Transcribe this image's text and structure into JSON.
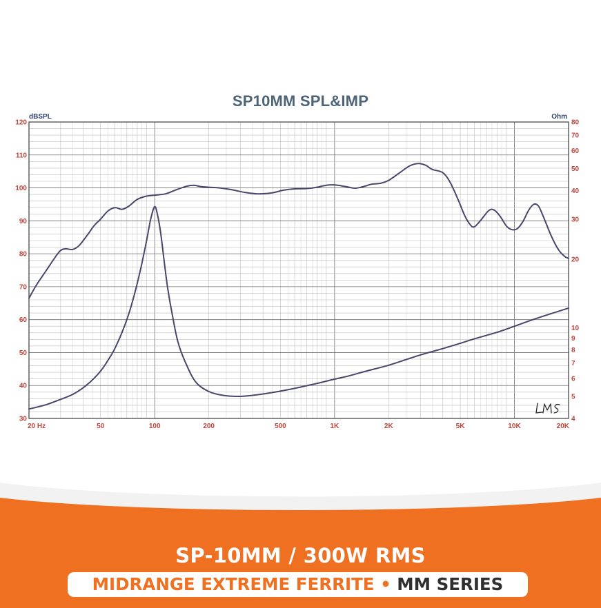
{
  "chart_data": {
    "type": "line",
    "title": "SP10MM SPL&IMP",
    "left_axis_unit": "dBSPL",
    "right_axis_unit": "Ohm",
    "x_scale": "log",
    "xlim": [
      20,
      20000
    ],
    "ylim_left": [
      30,
      120
    ],
    "ylim_right": [
      4,
      80
    ],
    "right_scale": "log",
    "grid": true,
    "x_ticks": [
      {
        "value": 20,
        "label": "20  Hz"
      },
      {
        "value": 50,
        "label": "50"
      },
      {
        "value": 100,
        "label": "100"
      },
      {
        "value": 200,
        "label": "200"
      },
      {
        "value": 500,
        "label": "500"
      },
      {
        "value": 1000,
        "label": "1K"
      },
      {
        "value": 2000,
        "label": "2K"
      },
      {
        "value": 5000,
        "label": "5K"
      },
      {
        "value": 10000,
        "label": "10K"
      },
      {
        "value": 20000,
        "label": "20K"
      }
    ],
    "left_ticks": [
      30,
      40,
      50,
      60,
      70,
      80,
      90,
      100,
      110,
      120
    ],
    "right_ticks": [
      4,
      5,
      6,
      7,
      8,
      9,
      10,
      20,
      30,
      40,
      50,
      60,
      70,
      80
    ],
    "series": [
      {
        "axis": "left",
        "unit": "dB",
        "points": [
          [
            20,
            66.5
          ],
          [
            22,
            70.5
          ],
          [
            25,
            75
          ],
          [
            28,
            79
          ],
          [
            30,
            81
          ],
          [
            32,
            81.5
          ],
          [
            35,
            81.3
          ],
          [
            38,
            82.5
          ],
          [
            42,
            85.5
          ],
          [
            46,
            88.5
          ],
          [
            50,
            90.5
          ],
          [
            55,
            93
          ],
          [
            60,
            94
          ],
          [
            66,
            93.5
          ],
          [
            72,
            94.5
          ],
          [
            80,
            96.5
          ],
          [
            90,
            97.5
          ],
          [
            100,
            97.8
          ],
          [
            115,
            98.2
          ],
          [
            130,
            99.3
          ],
          [
            150,
            100.5
          ],
          [
            165,
            100.8
          ],
          [
            180,
            100.4
          ],
          [
            200,
            100.2
          ],
          [
            230,
            100
          ],
          [
            270,
            99.4
          ],
          [
            320,
            98.6
          ],
          [
            380,
            98.2
          ],
          [
            450,
            98.5
          ],
          [
            520,
            99.3
          ],
          [
            600,
            99.7
          ],
          [
            700,
            99.8
          ],
          [
            800,
            100.2
          ],
          [
            900,
            100.8
          ],
          [
            1000,
            100.9
          ],
          [
            1150,
            100.4
          ],
          [
            1300,
            99.9
          ],
          [
            1450,
            100.4
          ],
          [
            1600,
            101.1
          ],
          [
            1800,
            101.4
          ],
          [
            2000,
            102.3
          ],
          [
            2300,
            104.6
          ],
          [
            2600,
            106.6
          ],
          [
            2900,
            107.4
          ],
          [
            3200,
            106.9
          ],
          [
            3500,
            105.6
          ],
          [
            4000,
            104.6
          ],
          [
            4400,
            101.6
          ],
          [
            4900,
            96
          ],
          [
            5300,
            91.5
          ],
          [
            5700,
            88.7
          ],
          [
            6000,
            88.2
          ],
          [
            6500,
            90.2
          ],
          [
            7200,
            93.1
          ],
          [
            7700,
            93.3
          ],
          [
            8300,
            91.5
          ],
          [
            9000,
            88.5
          ],
          [
            9600,
            87.4
          ],
          [
            10300,
            87.5
          ],
          [
            11100,
            89.6
          ],
          [
            12000,
            93.2
          ],
          [
            12800,
            95
          ],
          [
            13600,
            94.5
          ],
          [
            14500,
            91.2
          ],
          [
            16000,
            85.5
          ],
          [
            17500,
            81.4
          ],
          [
            19000,
            79.2
          ],
          [
            20000,
            78.6
          ]
        ]
      },
      {
        "axis": "right",
        "unit": "Ohm",
        "points": [
          [
            20,
            4.4
          ],
          [
            25,
            4.6
          ],
          [
            30,
            4.85
          ],
          [
            35,
            5.1
          ],
          [
            40,
            5.45
          ],
          [
            45,
            5.9
          ],
          [
            50,
            6.45
          ],
          [
            55,
            7.2
          ],
          [
            60,
            8.1
          ],
          [
            66,
            9.6
          ],
          [
            72,
            11.6
          ],
          [
            78,
            14.5
          ],
          [
            84,
            18.5
          ],
          [
            90,
            24
          ],
          [
            95,
            30
          ],
          [
            100,
            34
          ],
          [
            104,
            31
          ],
          [
            108,
            26
          ],
          [
            113,
            19.5
          ],
          [
            118,
            15
          ],
          [
            125,
            11.5
          ],
          [
            135,
            8.6
          ],
          [
            150,
            6.9
          ],
          [
            170,
            5.75
          ],
          [
            200,
            5.25
          ],
          [
            240,
            5.05
          ],
          [
            290,
            5
          ],
          [
            350,
            5.05
          ],
          [
            420,
            5.15
          ],
          [
            500,
            5.27
          ],
          [
            600,
            5.42
          ],
          [
            700,
            5.57
          ],
          [
            800,
            5.7
          ],
          [
            1000,
            5.95
          ],
          [
            1200,
            6.15
          ],
          [
            1500,
            6.45
          ],
          [
            2000,
            6.85
          ],
          [
            2500,
            7.25
          ],
          [
            3000,
            7.6
          ],
          [
            4000,
            8.1
          ],
          [
            5000,
            8.55
          ],
          [
            6000,
            8.95
          ],
          [
            8000,
            9.55
          ],
          [
            10000,
            10.15
          ],
          [
            12000,
            10.7
          ],
          [
            15000,
            11.35
          ],
          [
            20000,
            12.2
          ]
        ]
      }
    ]
  },
  "watermark": "LMS",
  "footer": {
    "line1": "SP-10MM / 300W RMS",
    "line2_part1": "MIDRANGE EXTREME FERRITE",
    "line2_sep": " • ",
    "line2_part2": "MM SERIES"
  },
  "colors": {
    "title": "#4d6478",
    "tick_labels": "#c0443a",
    "curves": "#47466b",
    "footer_orange": "#f07022"
  }
}
